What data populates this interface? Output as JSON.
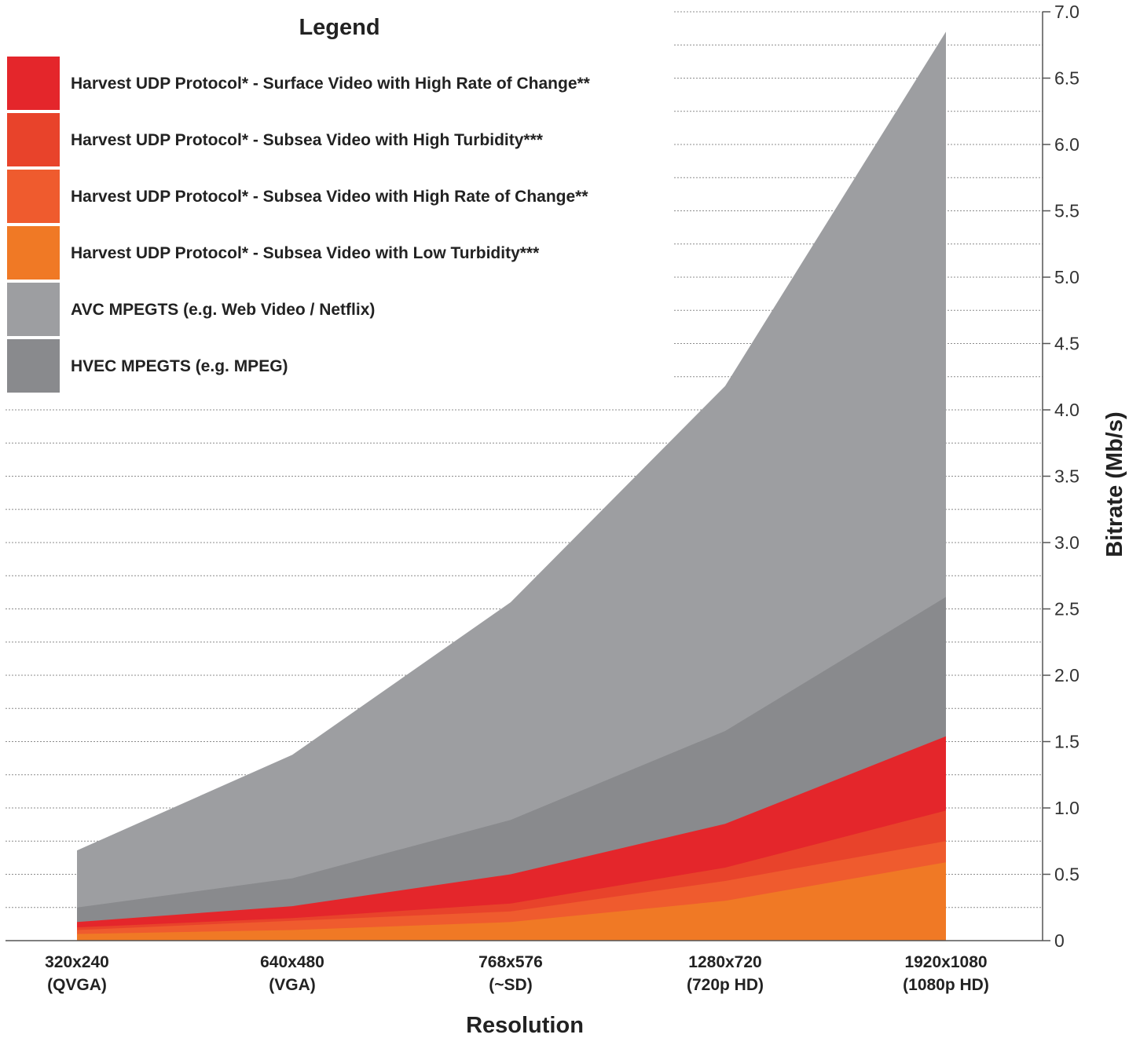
{
  "chart_data": {
    "type": "area",
    "legend_title": "Legend",
    "xlabel": "Resolution",
    "ylabel": "Bitrate (Mb/s)",
    "ylim": [
      0,
      7.0
    ],
    "yticks": [
      "0",
      "0.5",
      "1.0",
      "1.5",
      "2.0",
      "2.5",
      "3.0",
      "3.5",
      "4.0",
      "4.5",
      "5.0",
      "5.5",
      "6.0",
      "6.5",
      "7.0"
    ],
    "grid": true,
    "legend_position": "top-left",
    "categories": [
      [
        "320x240",
        "(QVGA)"
      ],
      [
        "640x480",
        "(VGA)"
      ],
      [
        "768x576",
        "(~SD)"
      ],
      [
        "1280x720",
        "(720p HD)"
      ],
      [
        "1920x1080",
        "(1080p HD)"
      ]
    ],
    "series": [
      {
        "name": "AVC MPEGTS (e.g. Web Video / Netflix)",
        "color": "#9d9ea1",
        "values": [
          0.68,
          1.4,
          2.55,
          4.18,
          6.85
        ]
      },
      {
        "name": "HVEC MPEGTS (e.g. MPEG)",
        "color": "#898a8d",
        "values": [
          0.25,
          0.47,
          0.91,
          1.58,
          2.59
        ]
      },
      {
        "name": "Harvest UDP Protocol* - Surface Video with High Rate of Change**",
        "color": "#e4262b",
        "values": [
          0.14,
          0.26,
          0.5,
          0.88,
          1.54
        ]
      },
      {
        "name": "Harvest UDP Protocol* - Subsea Video with High Turbidity***",
        "color": "#e8432b",
        "values": [
          0.1,
          0.17,
          0.28,
          0.55,
          0.98
        ]
      },
      {
        "name": "Harvest UDP Protocol* - Subsea Video with High Rate of Change**",
        "color": "#ef5b2e",
        "values": [
          0.08,
          0.15,
          0.22,
          0.45,
          0.75
        ]
      },
      {
        "name": "Harvest UDP Protocol* - Subsea Video with Low Turbidity***",
        "color": "#f07925",
        "values": [
          0.05,
          0.08,
          0.14,
          0.3,
          0.59
        ]
      }
    ],
    "legend_order": [
      "Harvest UDP Protocol* - Surface Video with High Rate of Change**",
      "Harvest UDP Protocol* - Subsea Video with High Turbidity***",
      "Harvest UDP Protocol* - Subsea Video with High Rate of Change**",
      "Harvest UDP Protocol* - Subsea Video with Low Turbidity***",
      "AVC MPEGTS (e.g. Web Video / Netflix)",
      "HVEC MPEGTS (e.g. MPEG)"
    ]
  }
}
